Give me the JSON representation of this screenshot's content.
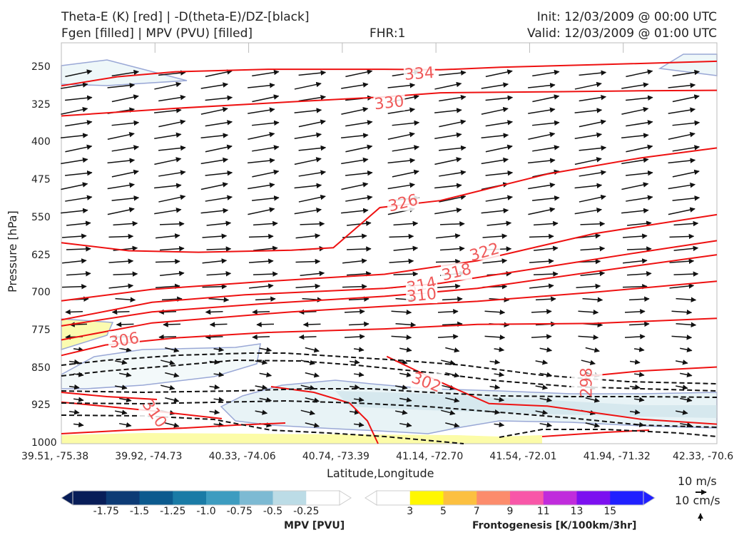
{
  "header": {
    "line1_left": "Theta-E (K) [red] | -D(theta-E)/DZ-[black]",
    "line2_left": "Fgen [filled] | MPV (PVU) [filled]",
    "fhr": "FHR:1",
    "init": "Init: 12/03/2009 @ 00:00 UTC",
    "valid": "Valid: 12/03/2009 @ 01:00 UTC"
  },
  "axes": {
    "ylabel": "Pressure [hPa]",
    "xlabel": "Latitude,Longitude",
    "yticks": [
      "250",
      "325",
      "400",
      "475",
      "550",
      "625",
      "700",
      "775",
      "850",
      "925",
      "1000"
    ],
    "xticks": [
      "39.51, -75.38",
      "39.92, -74.73",
      "40.33, -74.06",
      "40.74, -73.39",
      "41.14, -72.70",
      "41.54, -72.01",
      "41.94, -71.32",
      "42.33, -70.6"
    ]
  },
  "vector_key": {
    "upper": "10 m/s",
    "lower": "10 cm/s"
  },
  "colorbar_mpv": {
    "title": "MPV [PVU]",
    "labels": [
      "-1.75",
      "-1.5",
      "-1.25",
      "-1.0",
      "-0.75",
      "-0.5",
      "-0.25"
    ],
    "colors": [
      "#081d58",
      "#0d3b75",
      "#0c5a8e",
      "#1a7ba6",
      "#3d9cc0",
      "#7dbad3",
      "#bcdce6",
      "#ffffff"
    ]
  },
  "colorbar_fgen": {
    "title": "Frontogenesis [K/100km/3hr]",
    "labels": [
      "3",
      "5",
      "7",
      "9",
      "11",
      "13",
      "15"
    ],
    "colors": [
      "#ffffff",
      "#fff700",
      "#fcc040",
      "#fc8c6c",
      "#f857a8",
      "#c02cdc",
      "#7c10f0",
      "#2020ff"
    ]
  },
  "chart_data": {
    "type": "contour",
    "ylim": [
      1000,
      200
    ],
    "contour_labels": [
      {
        "text": "334",
        "x": 41.05,
        "p": 262
      },
      {
        "text": "330",
        "x": 40.92,
        "p": 320
      },
      {
        "text": "326",
        "x": 40.98,
        "p": 520
      },
      {
        "text": "322",
        "x": 41.33,
        "p": 618
      },
      {
        "text": "318",
        "x": 41.21,
        "p": 658
      },
      {
        "text": "314",
        "x": 41.06,
        "p": 684
      },
      {
        "text": "310",
        "x": 41.06,
        "p": 704
      },
      {
        "text": "306",
        "x": 39.78,
        "p": 794
      },
      {
        "text": "310",
        "x": 39.91,
        "p": 940
      },
      {
        "text": "302",
        "x": 41.08,
        "p": 878
      },
      {
        "text": "298",
        "x": 41.77,
        "p": 878
      }
    ],
    "theta_e_series": [
      {
        "name": "334",
        "points": [
          [
            39.51,
            286
          ],
          [
            39.75,
            268
          ],
          [
            40.0,
            258
          ],
          [
            40.4,
            253
          ],
          [
            40.9,
            253
          ],
          [
            41.14,
            254
          ],
          [
            41.4,
            249
          ],
          [
            41.8,
            244
          ],
          [
            42.33,
            237
          ]
        ]
      },
      {
        "name": "330",
        "points": [
          [
            39.51,
            346
          ],
          [
            40.0,
            331
          ],
          [
            40.5,
            318
          ],
          [
            40.9,
            308
          ],
          [
            41.14,
            300
          ],
          [
            41.6,
            298
          ],
          [
            42.0,
            296
          ],
          [
            42.33,
            295
          ]
        ]
      },
      {
        "name": "326",
        "points": [
          [
            39.51,
            599
          ],
          [
            39.8,
            615
          ],
          [
            40.1,
            618
          ],
          [
            40.5,
            614
          ],
          [
            40.68,
            609
          ],
          [
            40.88,
            529
          ],
          [
            41.14,
            515
          ],
          [
            41.6,
            462
          ],
          [
            42.0,
            430
          ],
          [
            42.33,
            410
          ]
        ]
      },
      {
        "name": "322",
        "points": [
          [
            39.51,
            715
          ],
          [
            39.9,
            692
          ],
          [
            40.4,
            676
          ],
          [
            40.9,
            662
          ],
          [
            41.3,
            635
          ],
          [
            41.8,
            581
          ],
          [
            42.33,
            543
          ]
        ]
      },
      {
        "name": "318",
        "points": [
          [
            39.51,
            753
          ],
          [
            39.9,
            718
          ],
          [
            40.3,
            703
          ],
          [
            40.9,
            690
          ],
          [
            41.14,
            680
          ],
          [
            41.6,
            647
          ],
          [
            42.0,
            618
          ],
          [
            42.33,
            595
          ]
        ]
      },
      {
        "name": "314",
        "points": [
          [
            39.51,
            765
          ],
          [
            39.9,
            737
          ],
          [
            40.4,
            720
          ],
          [
            40.9,
            706
          ],
          [
            41.3,
            690
          ],
          [
            41.8,
            657
          ],
          [
            42.33,
            623
          ]
        ]
      },
      {
        "name": "310",
        "points": [
          [
            39.51,
            793
          ],
          [
            39.9,
            759
          ],
          [
            40.5,
            737
          ],
          [
            40.9,
            726
          ],
          [
            41.3,
            716
          ],
          [
            41.8,
            698
          ],
          [
            42.33,
            676
          ]
        ]
      },
      {
        "name": "306",
        "points": [
          [
            39.51,
            824
          ],
          [
            39.7,
            803
          ],
          [
            40.0,
            789
          ],
          [
            40.4,
            778
          ],
          [
            40.9,
            771
          ],
          [
            41.3,
            762
          ],
          [
            41.8,
            760
          ],
          [
            42.33,
            750
          ]
        ]
      },
      {
        "name": "302",
        "points": [
          [
            40.91,
            826
          ],
          [
            41.14,
            877
          ],
          [
            41.35,
            920
          ],
          [
            41.6,
            925
          ],
          [
            42.0,
            951
          ],
          [
            42.33,
            961
          ]
        ]
      },
      {
        "name": "298",
        "points": [
          [
            41.76,
            866
          ],
          [
            42.0,
            855
          ],
          [
            42.33,
            847
          ]
        ]
      },
      {
        "name": "310",
        "points": [
          [
            39.51,
            917
          ],
          [
            39.91,
            935
          ],
          [
            40.2,
            950
          ]
        ]
      }
    ],
    "theta_e_labels": [
      "334",
      "330",
      "326",
      "322",
      "318",
      "314",
      "310",
      "306",
      "302",
      "298",
      "310"
    ]
  }
}
